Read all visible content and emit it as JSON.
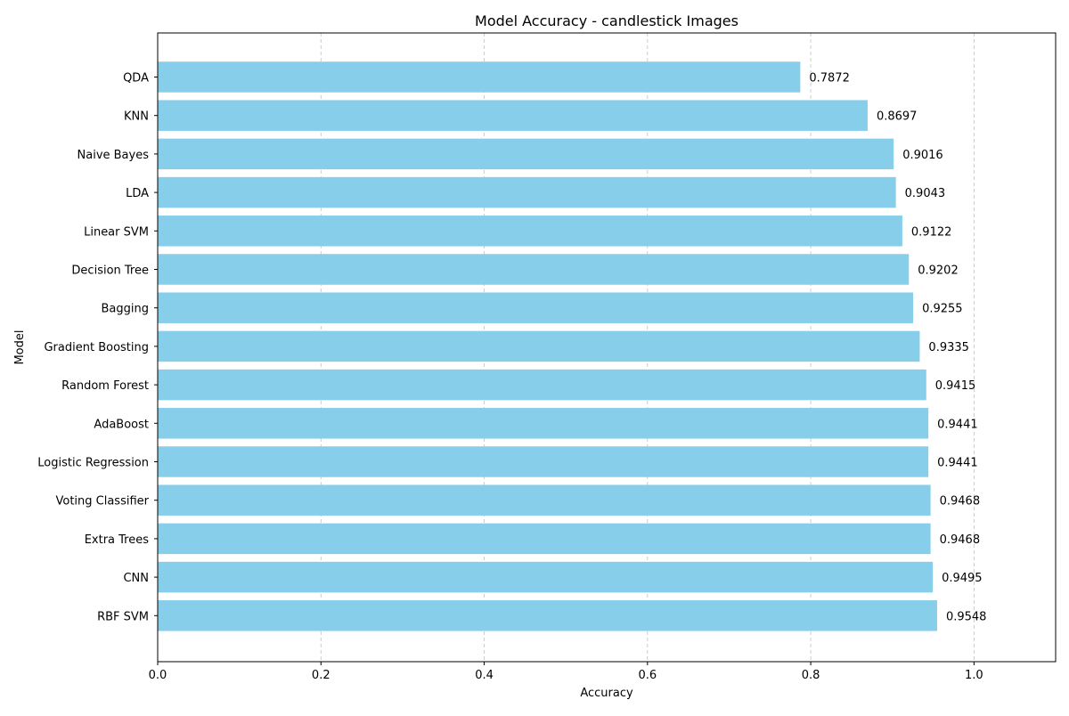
{
  "chart_data": {
    "type": "bar",
    "orientation": "horizontal",
    "title": "Model Accuracy - candlestick Images",
    "xlabel": "Accuracy",
    "ylabel": "Model",
    "xlim": [
      0,
      1.1
    ],
    "xticks": [
      0.0,
      0.2,
      0.4,
      0.6,
      0.8,
      1.0
    ],
    "xtick_labels": [
      "0.0",
      "0.2",
      "0.4",
      "0.6",
      "0.8",
      "1.0"
    ],
    "grid": "x-axis dashed",
    "categories": [
      "QDA",
      "KNN",
      "Naive Bayes",
      "LDA",
      "Linear SVM",
      "Decision Tree",
      "Bagging",
      "Gradient Boosting",
      "Random Forest",
      "AdaBoost",
      "Logistic Regression",
      "Voting Classifier",
      "Extra Trees",
      "CNN",
      "RBF SVM"
    ],
    "values": [
      0.7872,
      0.8697,
      0.9016,
      0.9043,
      0.9122,
      0.9202,
      0.9255,
      0.9335,
      0.9415,
      0.9441,
      0.9441,
      0.9468,
      0.9468,
      0.9495,
      0.9548
    ],
    "value_labels": [
      "0.7872",
      "0.8697",
      "0.9016",
      "0.9043",
      "0.9122",
      "0.9202",
      "0.9255",
      "0.9335",
      "0.9415",
      "0.9441",
      "0.9441",
      "0.9468",
      "0.9468",
      "0.9495",
      "0.9548"
    ],
    "bar_color": "#87ceeb",
    "grid_color": "#b0b0b0"
  }
}
